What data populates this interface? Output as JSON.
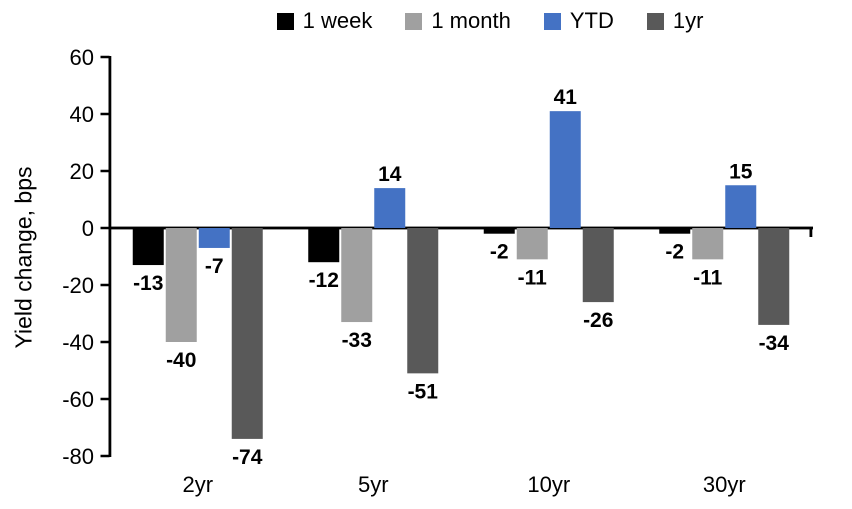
{
  "chart_data": {
    "type": "bar",
    "title": "",
    "ylabel": "Yield change, bps",
    "xlabel": "",
    "categories": [
      "2yr",
      "5yr",
      "10yr",
      "30yr"
    ],
    "series": [
      {
        "name": "1 week",
        "color": "#000000",
        "values": [
          -13,
          -12,
          -2,
          -2
        ]
      },
      {
        "name": "1 month",
        "color": "#A0A0A0",
        "values": [
          -40,
          -33,
          -11,
          -11
        ]
      },
      {
        "name": "YTD",
        "color": "#4472C4",
        "values": [
          -7,
          14,
          41,
          15
        ]
      },
      {
        "name": "1yr",
        "color": "#595959",
        "values": [
          -74,
          -51,
          -26,
          -34
        ]
      }
    ],
    "ylim": [
      -80,
      60
    ],
    "yticks": [
      60,
      40,
      20,
      0,
      -20,
      -40,
      -60,
      -80
    ],
    "legend_position": "top",
    "grid": false,
    "data_labels": true,
    "axis_color": "#000000",
    "background": "#FFFFFF"
  }
}
